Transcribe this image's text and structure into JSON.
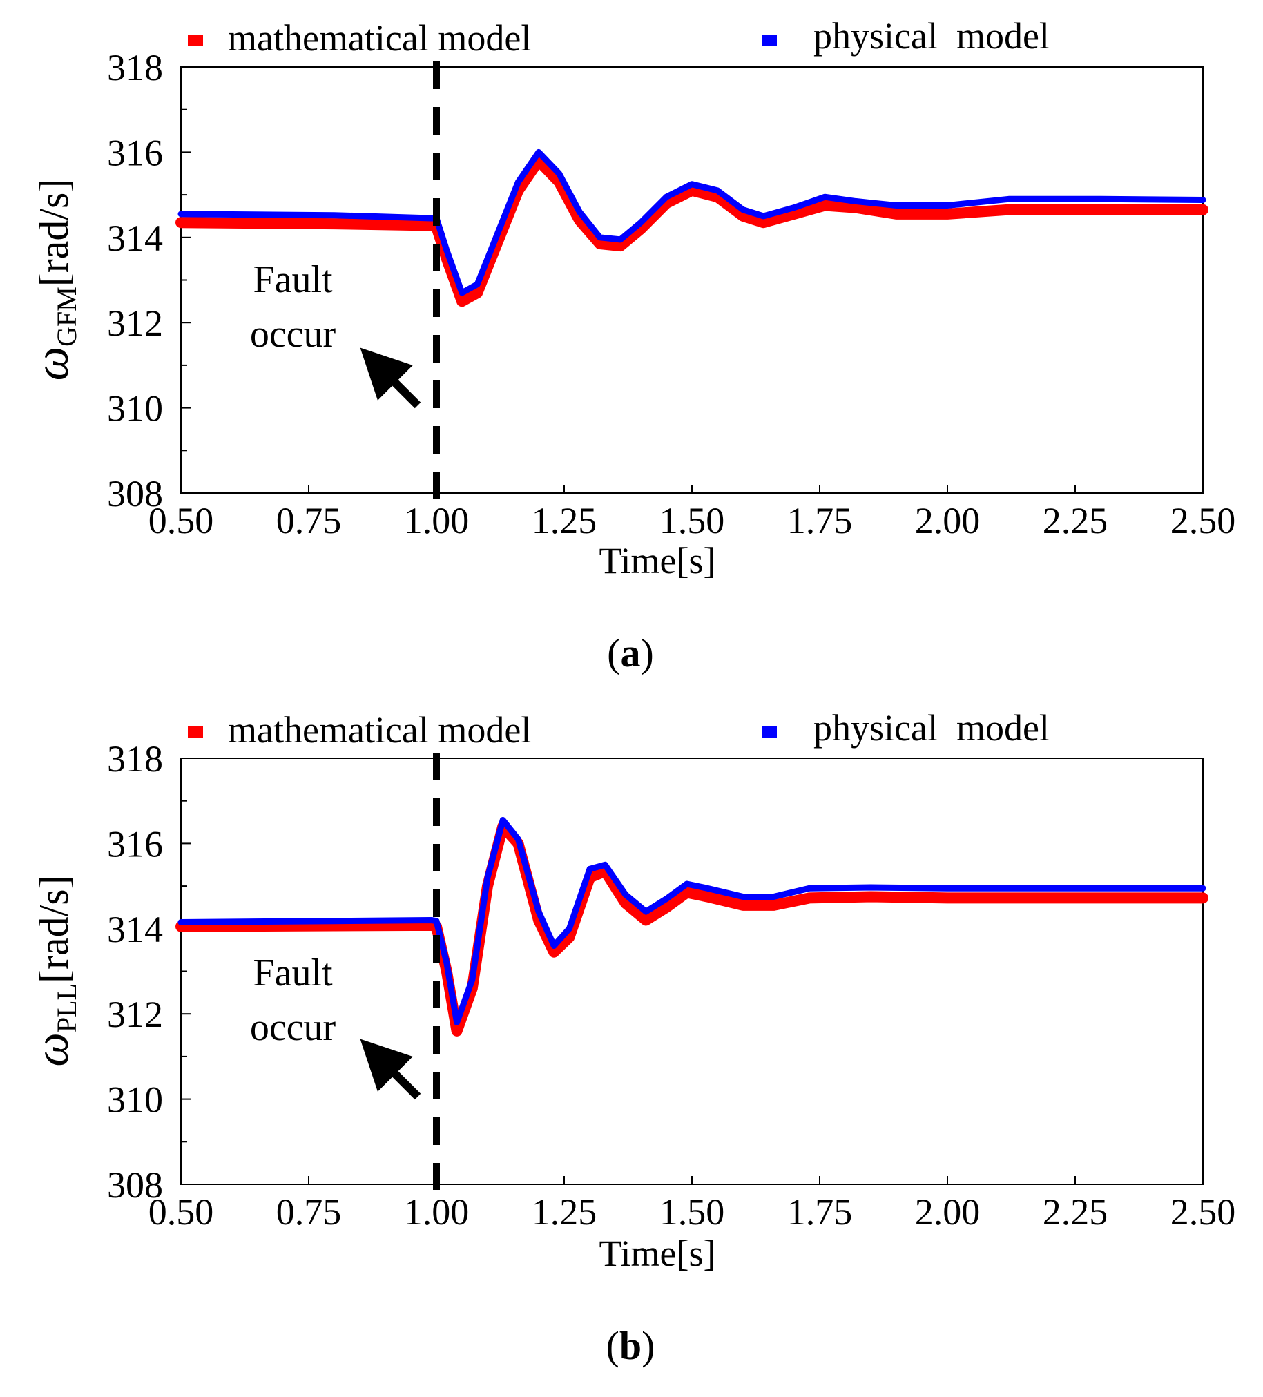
{
  "chart_data": [
    {
      "type": "line",
      "panel": "(a)",
      "panel_letter": "a",
      "legend": [
        {
          "name": "mathematical model",
          "color": "#ff0000"
        },
        {
          "name": "physical  model",
          "color": "#0000ff"
        }
      ],
      "ylabel_symbol": "ω",
      "ylabel_sub": "GFM",
      "ylabel_unit": "[rad/s]",
      "xlabel": "Time[s]",
      "xlim": [
        0.5,
        2.5
      ],
      "ylim": [
        308,
        318
      ],
      "xticks": [
        "0.50",
        "0.75",
        "1.00",
        "1.25",
        "1.50",
        "1.75",
        "2.00",
        "2.25",
        "2.50"
      ],
      "yticks": [
        "308",
        "310",
        "312",
        "314",
        "316",
        "318"
      ],
      "annotation": {
        "line1": "Fault",
        "line2": "occur",
        "fault_time": 1.0
      },
      "series": [
        {
          "name": "mathematical model",
          "color": "#ff0000",
          "points": [
            [
              0.5,
              314.35
            ],
            [
              0.8,
              314.32
            ],
            [
              0.99,
              314.28
            ],
            [
              1.0,
              314.25
            ],
            [
              1.02,
              313.5
            ],
            [
              1.05,
              312.5
            ],
            [
              1.08,
              312.7
            ],
            [
              1.12,
              313.9
            ],
            [
              1.16,
              315.1
            ],
            [
              1.2,
              315.8
            ],
            [
              1.24,
              315.3
            ],
            [
              1.28,
              314.4
            ],
            [
              1.32,
              313.85
            ],
            [
              1.36,
              313.8
            ],
            [
              1.4,
              314.2
            ],
            [
              1.45,
              314.8
            ],
            [
              1.5,
              315.1
            ],
            [
              1.55,
              314.95
            ],
            [
              1.6,
              314.5
            ],
            [
              1.64,
              314.35
            ],
            [
              1.7,
              314.55
            ],
            [
              1.76,
              314.75
            ],
            [
              1.82,
              314.7
            ],
            [
              1.9,
              314.55
            ],
            [
              2.0,
              314.55
            ],
            [
              2.12,
              314.65
            ],
            [
              2.3,
              314.65
            ],
            [
              2.5,
              314.65
            ]
          ]
        },
        {
          "name": "physical  model",
          "color": "#0000ff",
          "points": [
            [
              0.5,
              314.55
            ],
            [
              0.8,
              314.52
            ],
            [
              0.99,
              314.45
            ],
            [
              1.0,
              314.45
            ],
            [
              1.02,
              313.7
            ],
            [
              1.05,
              312.7
            ],
            [
              1.08,
              312.9
            ],
            [
              1.12,
              314.1
            ],
            [
              1.16,
              315.3
            ],
            [
              1.2,
              316.0
            ],
            [
              1.24,
              315.5
            ],
            [
              1.28,
              314.6
            ],
            [
              1.32,
              314.0
            ],
            [
              1.36,
              313.95
            ],
            [
              1.4,
              314.35
            ],
            [
              1.45,
              314.95
            ],
            [
              1.5,
              315.25
            ],
            [
              1.55,
              315.1
            ],
            [
              1.6,
              314.65
            ],
            [
              1.64,
              314.5
            ],
            [
              1.7,
              314.7
            ],
            [
              1.76,
              314.95
            ],
            [
              1.82,
              314.85
            ],
            [
              1.9,
              314.75
            ],
            [
              2.0,
              314.75
            ],
            [
              2.12,
              314.9
            ],
            [
              2.3,
              314.9
            ],
            [
              2.5,
              314.88
            ]
          ]
        }
      ]
    },
    {
      "type": "line",
      "panel": "(b)",
      "panel_letter": "b",
      "legend": [
        {
          "name": "mathematical model",
          "color": "#ff0000"
        },
        {
          "name": "physical  model",
          "color": "#0000ff"
        }
      ],
      "ylabel_symbol": "ω",
      "ylabel_sub": "PLL",
      "ylabel_unit": "[rad/s]",
      "xlabel": "Time[s]",
      "xlim": [
        0.5,
        2.5
      ],
      "ylim": [
        308,
        318
      ],
      "xticks": [
        "0.50",
        "0.75",
        "1.00",
        "1.25",
        "1.50",
        "1.75",
        "2.00",
        "2.25",
        "2.50"
      ],
      "yticks": [
        "308",
        "310",
        "312",
        "314",
        "316",
        "318"
      ],
      "annotation": {
        "line1": "Fault",
        "line2": "occur",
        "fault_time": 1.0
      },
      "series": [
        {
          "name": "mathematical model",
          "color": "#ff0000",
          "points": [
            [
              0.5,
              314.05
            ],
            [
              0.8,
              314.07
            ],
            [
              0.99,
              314.08
            ],
            [
              1.0,
              314.05
            ],
            [
              1.02,
              313.0
            ],
            [
              1.04,
              311.6
            ],
            [
              1.07,
              312.6
            ],
            [
              1.1,
              315.0
            ],
            [
              1.13,
              316.4
            ],
            [
              1.16,
              316.0
            ],
            [
              1.2,
              314.2
            ],
            [
              1.23,
              313.45
            ],
            [
              1.26,
              313.8
            ],
            [
              1.3,
              315.2
            ],
            [
              1.33,
              315.35
            ],
            [
              1.37,
              314.6
            ],
            [
              1.41,
              314.2
            ],
            [
              1.45,
              314.5
            ],
            [
              1.49,
              314.85
            ],
            [
              1.53,
              314.75
            ],
            [
              1.6,
              314.55
            ],
            [
              1.66,
              314.55
            ],
            [
              1.73,
              314.72
            ],
            [
              1.85,
              314.75
            ],
            [
              2.0,
              314.72
            ],
            [
              2.25,
              314.72
            ],
            [
              2.5,
              314.72
            ]
          ]
        },
        {
          "name": "physical  model",
          "color": "#0000ff",
          "points": [
            [
              0.5,
              314.15
            ],
            [
              0.8,
              314.18
            ],
            [
              0.99,
              314.2
            ],
            [
              1.0,
              314.18
            ],
            [
              1.02,
              313.2
            ],
            [
              1.04,
              311.8
            ],
            [
              1.07,
              312.8
            ],
            [
              1.1,
              315.2
            ],
            [
              1.13,
              316.55
            ],
            [
              1.16,
              316.1
            ],
            [
              1.2,
              314.4
            ],
            [
              1.23,
              313.6
            ],
            [
              1.26,
              314.0
            ],
            [
              1.3,
              315.4
            ],
            [
              1.33,
              315.5
            ],
            [
              1.37,
              314.8
            ],
            [
              1.41,
              314.4
            ],
            [
              1.45,
              314.7
            ],
            [
              1.49,
              315.05
            ],
            [
              1.53,
              314.95
            ],
            [
              1.6,
              314.75
            ],
            [
              1.66,
              314.75
            ],
            [
              1.73,
              314.95
            ],
            [
              1.85,
              314.97
            ],
            [
              2.0,
              314.95
            ],
            [
              2.25,
              314.95
            ],
            [
              2.5,
              314.95
            ]
          ]
        }
      ]
    }
  ]
}
